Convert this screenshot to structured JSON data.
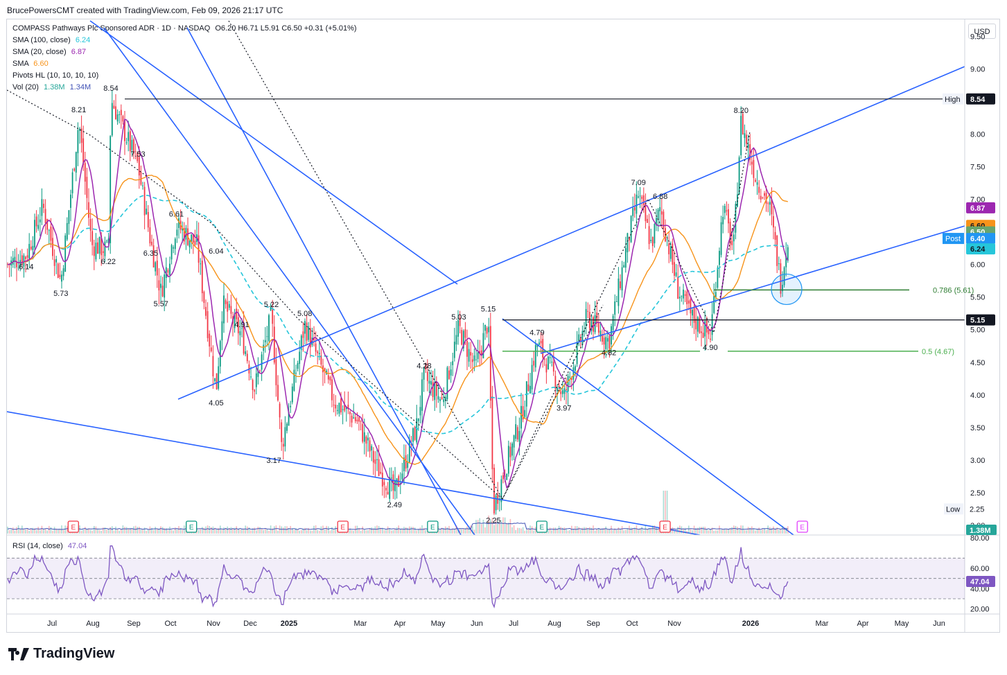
{
  "header": {
    "attribution": "BrucePowersCMT created with TradingView.com, Feb 09, 2026 21:17 UTC"
  },
  "legend": {
    "symbol": "COMPASS Pathways Plc Sponsored ADR · 1D · NASDAQ",
    "ohlc": "O6.20 H6.71 L5.91 C6.50 +0.31 (+5.01%)",
    "sma100_label": "SMA (100, close)",
    "sma100_value": "6.24",
    "sma20_label": "SMA (20, close)",
    "sma20_value": "6.87",
    "sma_label": "SMA",
    "sma_value": "6.60",
    "pivots_label": "Pivots HL (10, 10, 10, 10)",
    "vol_label": "Vol (20)",
    "vol_value1": "1.38M",
    "vol_value2": "1.34M",
    "rsi_label": "RSI (14, close)",
    "rsi_value": "47.04"
  },
  "currency": "USD",
  "brand": "TradingView",
  "colors": {
    "sma100": "#26c6da",
    "sma20": "#9c27b0",
    "sma": "#f7931a",
    "trend": "#2962ff",
    "up": "#089981",
    "down": "#f23645",
    "fib": "#4caf50",
    "fib_dark": "#2e7d32",
    "rsi": "#7e57c2",
    "level": "#131722"
  },
  "chart_data": {
    "type": "candlestick",
    "ylim": [
      1.85,
      9.75
    ],
    "ticks": [
      "9.50",
      "9.00",
      "8.50",
      "8.00",
      "7.50",
      "7.00",
      "6.50",
      "6.00",
      "5.50",
      "5.00",
      "4.50",
      "4.00",
      "3.50",
      "3.00",
      "2.50",
      "2.00"
    ],
    "x_labels": [
      "Jul",
      "Aug",
      "Sep",
      "Oct",
      "Nov",
      "Dec",
      "2025",
      "Mar",
      "Apr",
      "May",
      "Jun",
      "Jul",
      "Aug",
      "Sep",
      "Oct",
      "Nov",
      "2026",
      "Mar",
      "Apr",
      "May",
      "Jun"
    ],
    "pivots": [
      {
        "label": "8.54",
        "date": "2024-08-30",
        "value": 8.54,
        "pos": "above"
      },
      {
        "label": "8.21",
        "date": "2024-08-05",
        "value": 8.21,
        "pos": "above"
      },
      {
        "label": "7.53",
        "date": "2024-09-20",
        "value": 7.53,
        "pos": "above"
      },
      {
        "label": "6.61",
        "date": "2024-10-20",
        "value": 6.61,
        "pos": "above"
      },
      {
        "label": "6.14",
        "date": "2024-06-25",
        "value": 6.14,
        "pos": "below"
      },
      {
        "label": "5.73",
        "date": "2024-07-22",
        "value": 5.73,
        "pos": "below"
      },
      {
        "label": "6.22",
        "date": "2024-08-28",
        "value": 6.22,
        "pos": "below"
      },
      {
        "label": "6.35",
        "date": "2024-09-30",
        "value": 6.35,
        "pos": "below"
      },
      {
        "label": "5.57",
        "date": "2024-10-08",
        "value": 5.57,
        "pos": "below"
      },
      {
        "label": "6.04",
        "date": "2024-11-20",
        "value": 6.04,
        "pos": "above"
      },
      {
        "label": "4.91",
        "date": "2024-12-10",
        "value": 4.91,
        "pos": "above"
      },
      {
        "label": "5.22",
        "date": "2025-01-02",
        "value": 5.22,
        "pos": "above"
      },
      {
        "label": "5.08",
        "date": "2025-01-28",
        "value": 5.08,
        "pos": "above"
      },
      {
        "label": "4.05",
        "date": "2024-11-20",
        "value": 4.05,
        "pos": "below"
      },
      {
        "label": "3.17",
        "date": "2025-01-04",
        "value": 3.17,
        "pos": "below"
      },
      {
        "label": "2.49",
        "date": "2025-04-08",
        "value": 2.49,
        "pos": "below"
      },
      {
        "label": "4.28",
        "date": "2025-05-01",
        "value": 4.28,
        "pos": "above"
      },
      {
        "label": "5.03",
        "date": "2025-05-28",
        "value": 5.03,
        "pos": "above"
      },
      {
        "label": "5.15",
        "date": "2025-06-20",
        "value": 5.15,
        "pos": "above"
      },
      {
        "label": "2.25",
        "date": "2025-06-24",
        "value": 2.25,
        "pos": "below"
      },
      {
        "label": "4.79",
        "date": "2025-07-28",
        "value": 4.79,
        "pos": "above"
      },
      {
        "label": "3.97",
        "date": "2025-08-18",
        "value": 3.97,
        "pos": "below"
      },
      {
        "label": "4.82",
        "date": "2025-09-22",
        "value": 4.82,
        "pos": "below"
      },
      {
        "label": "7.09",
        "date": "2025-10-15",
        "value": 7.09,
        "pos": "above"
      },
      {
        "label": "6.88",
        "date": "2025-11-01",
        "value": 6.88,
        "pos": "above"
      },
      {
        "label": "4.90",
        "date": "2025-12-10",
        "value": 4.9,
        "pos": "below"
      },
      {
        "label": "8.20",
        "date": "2026-01-03",
        "value": 8.2,
        "pos": "above"
      }
    ],
    "levels": [
      {
        "name": "High",
        "value": 8.54,
        "label": "High"
      },
      {
        "name": "Low",
        "value": 2.25,
        "label": "Low"
      },
      {
        "name": "5.15",
        "value": 5.15,
        "label": "5.15"
      },
      {
        "name": "fib-0.786",
        "value": 5.61,
        "label": "0.786 (5.61)"
      },
      {
        "name": "fib-0.5",
        "value": 4.67,
        "label": "0.5 (4.67)"
      }
    ],
    "price_badges": [
      {
        "name": "8.54",
        "text": "8.54",
        "value": 8.54,
        "bg": "#131722",
        "fg": "#ffffff"
      },
      {
        "name": "sma20",
        "text": "6.87",
        "value": 6.87,
        "bg": "#9c27b0",
        "fg": "#ffffff"
      },
      {
        "name": "sma",
        "text": "6.60",
        "value": 6.6,
        "bg": "#f7931a",
        "fg": "#131722"
      },
      {
        "name": "close",
        "text": "6.50",
        "value": 6.5,
        "bg": "#67a56f",
        "fg": "#ffffff"
      },
      {
        "name": "post",
        "text": "6.40",
        "value": 6.4,
        "bg": "#2196f3",
        "fg": "#ffffff"
      },
      {
        "name": "sma100",
        "text": "6.24",
        "value": 6.24,
        "bg": "#26c6da",
        "fg": "#131722"
      },
      {
        "name": "5.15",
        "text": "5.15",
        "value": 5.15,
        "bg": "#131722",
        "fg": "#ffffff"
      }
    ],
    "side_labels": {
      "high": "High",
      "low": "Low",
      "post": "Post",
      "high_value": "8.54",
      "low_value": "2.25"
    },
    "volume": {
      "badge": "1.38M",
      "axis_label": "80.00"
    },
    "rsi": {
      "ticks": [
        "60.00",
        "40.00",
        "20.00"
      ],
      "value": 47.04,
      "value_label": "47.04",
      "bands": [
        70,
        50,
        30
      ]
    },
    "events": [
      {
        "type": "E",
        "date": "2024-08-01",
        "kind": "earnings"
      },
      {
        "type": "E",
        "date": "2024-11-01",
        "kind": "dividend"
      },
      {
        "type": "E",
        "date": "2025-02-27",
        "kind": "earnings"
      },
      {
        "type": "E",
        "date": "2025-05-08",
        "kind": "dividend"
      },
      {
        "type": "E",
        "date": "2025-08-01",
        "kind": "dividend"
      },
      {
        "type": "E",
        "date": "2025-11-05",
        "kind": "earnings"
      },
      {
        "type": "E",
        "date": "2026-02-20",
        "kind": "upcoming"
      }
    ]
  }
}
